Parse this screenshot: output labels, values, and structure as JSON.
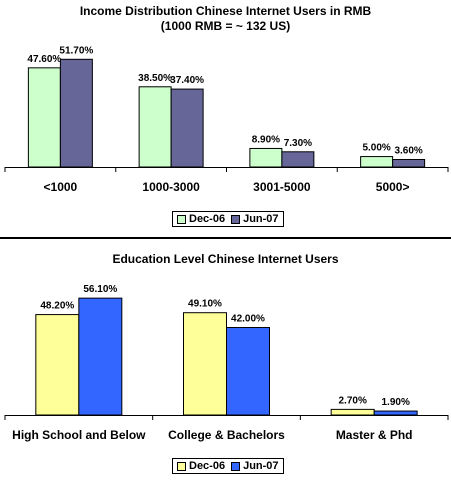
{
  "chart_data": [
    {
      "type": "bar",
      "title": "Income Distribution Chinese Internet Users in RMB",
      "subtitle": "(1000 RMB = ~ 132 US)",
      "categories": [
        "<1000",
        "1000-3000",
        "3001-5000",
        "5000>"
      ],
      "series": [
        {
          "name": "Dec-06",
          "values": [
            47.6,
            38.5,
            8.9,
            5.0
          ],
          "labels": [
            "47.60%",
            "38.50%",
            "8.90%",
            "5.00%"
          ],
          "color": "#ccffcc"
        },
        {
          "name": "Jun-07",
          "values": [
            51.7,
            37.4,
            7.3,
            3.6
          ],
          "labels": [
            "51.70%",
            "37.40%",
            "7.30%",
            "3.60%"
          ],
          "color": "#666699"
        }
      ],
      "ylim": [
        0,
        60
      ],
      "grid": false,
      "legend": "bottom-center"
    },
    {
      "type": "bar",
      "title": "Education Level Chinese Internet Users",
      "categories": [
        "High School and Below",
        "College & Bachelors",
        "Master & Phd"
      ],
      "series": [
        {
          "name": "Dec-06",
          "values": [
            48.2,
            49.1,
            2.7
          ],
          "labels": [
            "48.20%",
            "49.10%",
            "2.70%"
          ],
          "color": "#ffff99"
        },
        {
          "name": "Jun-07",
          "values": [
            56.1,
            42.0,
            1.9
          ],
          "labels": [
            "56.10%",
            "42.00%",
            "1.90%"
          ],
          "color": "#3366ff"
        }
      ],
      "ylim": [
        0,
        60
      ],
      "grid": false,
      "legend": "bottom-center"
    }
  ]
}
